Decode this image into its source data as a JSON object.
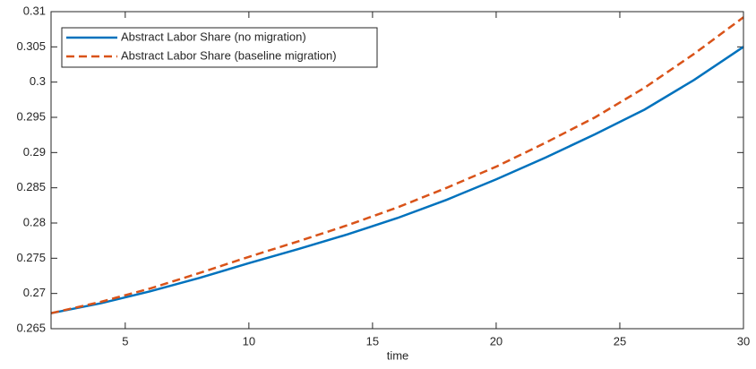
{
  "chart_data": {
    "type": "line",
    "xlabel": "time",
    "x": [
      2,
      4,
      6,
      8,
      10,
      12,
      14,
      16,
      18,
      20,
      22,
      24,
      26,
      28,
      30
    ],
    "series": [
      {
        "name": "Abstract Labor Share (no migration)",
        "color": "#0072bd",
        "dash": "solid",
        "values": [
          0.2672,
          0.2686,
          0.2703,
          0.2722,
          0.2743,
          0.2763,
          0.2784,
          0.2807,
          0.2833,
          0.2862,
          0.2893,
          0.2926,
          0.2961,
          0.3003,
          0.305
        ]
      },
      {
        "name": "Abstract Labor Share (baseline migration)",
        "color": "#d95319",
        "dash": "dashed",
        "values": [
          0.2672,
          0.2688,
          0.2707,
          0.2729,
          0.2752,
          0.2774,
          0.2797,
          0.2822,
          0.285,
          0.288,
          0.2914,
          0.295,
          0.2992,
          0.304,
          0.3092
        ]
      }
    ],
    "xlim": [
      2,
      30
    ],
    "xticks": [
      5,
      10,
      15,
      20,
      25,
      30
    ],
    "ylim": [
      0.265,
      0.31
    ],
    "yticks": [
      0.265,
      0.27,
      0.275,
      0.28,
      0.285,
      0.29,
      0.295,
      0.3,
      0.305,
      0.31
    ],
    "legend": "northwest",
    "grid": false
  }
}
